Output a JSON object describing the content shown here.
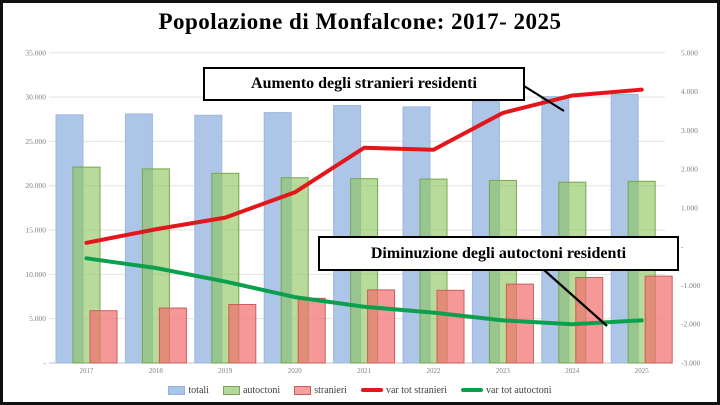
{
  "chart_data": {
    "type": "combo (bar + line, dual axis)",
    "title": "Popolazione di Monfalcone:  2017- 2025",
    "categories": [
      "2017",
      "2018",
      "2019",
      "2020",
      "2021",
      "2022",
      "2023",
      "2024",
      "2025"
    ],
    "bar_series": [
      {
        "name": "totali",
        "axis": "left",
        "values": [
          28000,
          28100,
          27950,
          28250,
          29050,
          28900,
          29500,
          30050,
          30300
        ]
      },
      {
        "name": "autoctoni",
        "axis": "left",
        "values": [
          22100,
          21900,
          21400,
          20900,
          20800,
          20750,
          20600,
          20400,
          20500
        ]
      },
      {
        "name": "stranieri",
        "axis": "left",
        "values": [
          5900,
          6200,
          6600,
          7300,
          8250,
          8200,
          8900,
          9650,
          9800
        ]
      }
    ],
    "line_series": [
      {
        "name": "var tot stranieri",
        "axis": "right",
        "values": [
          100,
          450,
          750,
          1400,
          2550,
          2500,
          3450,
          3900,
          4050
        ]
      },
      {
        "name": "var tot autoctoni",
        "axis": "right",
        "values": [
          -300,
          -550,
          -900,
          -1300,
          -1550,
          -1700,
          -1900,
          -2000,
          -1900
        ]
      }
    ],
    "left_axis": {
      "min": 0,
      "max": 35000,
      "tick_step": 5000,
      "ticks": [
        {
          "label": "35.000",
          "value": 35000
        },
        {
          "label": "30.000",
          "value": 30000
        },
        {
          "label": "25.000",
          "value": 25000
        },
        {
          "label": "20.000",
          "value": 20000
        },
        {
          "label": "15.000",
          "value": 15000
        },
        {
          "label": "10.000",
          "value": 10000
        },
        {
          "label": "5.000",
          "value": 5000
        },
        {
          "label": "-",
          "value": 0
        }
      ]
    },
    "right_axis": {
      "min": -3000,
      "max": 5000,
      "tick_step": 1000,
      "ticks": [
        {
          "label": "5.000",
          "value": 5000
        },
        {
          "label": "4.000",
          "value": 4000
        },
        {
          "label": "3.000",
          "value": 3000
        },
        {
          "label": "2.000",
          "value": 2000
        },
        {
          "label": "1.000",
          "value": 1000
        },
        {
          "label": "-",
          "value": 0
        },
        {
          "label": "-1.000",
          "value": -1000
        },
        {
          "label": "-2.000",
          "value": -2000
        },
        {
          "label": "-3.000",
          "value": -3000
        }
      ],
      "note": "gridlines follow left axis only"
    },
    "legend_position": "bottom"
  },
  "annotations": [
    {
      "text": "Aumento degli stranieri residenti"
    },
    {
      "text": "Diminuzione degli autoctoni residenti"
    }
  ],
  "legend": {
    "items": [
      {
        "label": "totali",
        "swatch": "rect",
        "color": "#abc5e7",
        "border": "#93b3d9"
      },
      {
        "label": "autoctoni",
        "swatch": "rect",
        "color": "#b6d79b",
        "border": "#76a74c"
      },
      {
        "label": "stranieri",
        "swatch": "rect",
        "color": "#f5a0a0",
        "border": "#cd5c5c"
      },
      {
        "label": "var tot stranieri",
        "swatch": "line",
        "color": "#e3161c"
      },
      {
        "label": "var tot autoctoni",
        "swatch": "line",
        "color": "#0ca04e"
      }
    ]
  },
  "colors": {
    "bar_totali_fill": "#adc6e8",
    "bar_totali_border": "#9db8dc",
    "bar_autoctoni_fill": "rgba(140,197,92,0.62)",
    "bar_autoctoni_border": "#76a74c",
    "bar_stranieri_fill": "rgba(243,108,108,0.70)",
    "bar_stranieri_border": "#cd5c5c",
    "line_var_stranieri": "#e3161c",
    "line_var_autoctoni": "#0ca04e",
    "gridline": "#e2e2e2",
    "zero_axis": "#c6c6c6",
    "axis_text": "#7f7f7f",
    "frame": "#111111"
  }
}
